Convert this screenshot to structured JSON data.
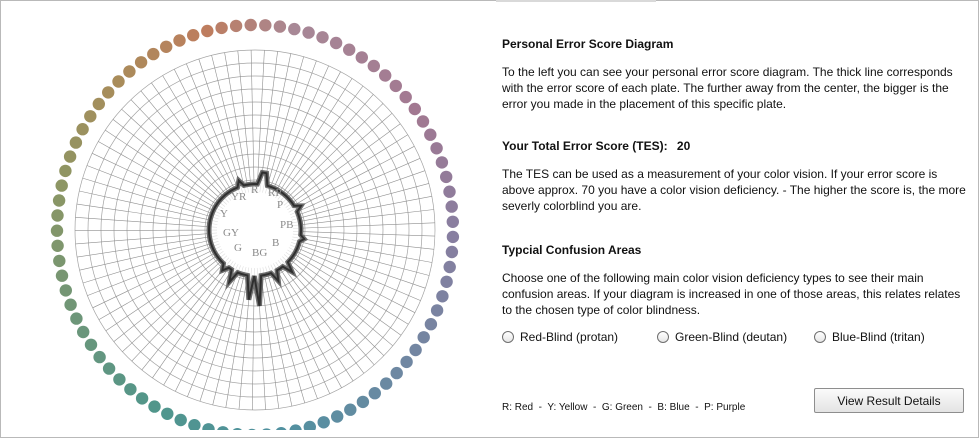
{
  "diagram": {
    "labels": [
      "R",
      "RP",
      "P",
      "PB",
      "B",
      "BG",
      "G",
      "GY",
      "Y",
      "YR"
    ],
    "plate_colors_start": "#c27b73",
    "plate_colors_end": "#5f9a8a",
    "error_line_color": "#4a4a4a",
    "grid_color": "#9c9c9c"
  },
  "panel": {
    "title": "Personal Error Score Diagram",
    "description": "To the left you can see your personal error score diagram. The thick line corresponds with the error score of each plate. The further away from the center, the bigger is the error you made in the placement of this specific plate.",
    "tes_label": "Your Total Error Score (TES):",
    "tes_value": "20",
    "tes_description": "The TES can be used as a measurement of your color vision. If your error score is above approx. 70 you have a color vision deficiency. - The higher the score is, the more severly colorblind you are.",
    "confusion_title": "Typcial Confusion Areas",
    "confusion_description": "Choose one of the following main color vision deficiency types to see their main confusion areas. If your diagram is increased in one of those areas, this relates relates to the chosen type of color blindness."
  },
  "options": {
    "protan": "Red-Blind (protan)",
    "deutan": "Green-Blind (deutan)",
    "tritan": "Blue-Blind (tritan)"
  },
  "legend": "R: Red  -  Y: Yellow  -  G: Green  -  B: Blue  -  P: Purple",
  "button": "View Result Details"
}
